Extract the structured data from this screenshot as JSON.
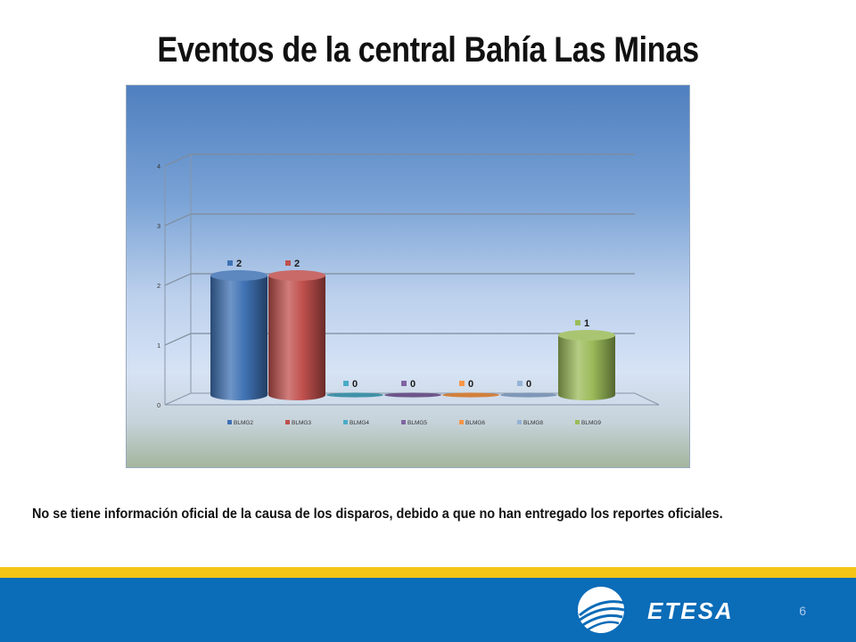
{
  "slide": {
    "title": "Eventos de la central Bahía Las Minas",
    "note": "No se tiene información oficial de la causa de los disparos, debido a que no han entregado los reportes oficiales.",
    "page_number": "6",
    "logo_text": "ETESA"
  },
  "chart_data": {
    "type": "bar",
    "categories": [
      "BLMG2",
      "BLMG3",
      "BLMG4",
      "BLMG5",
      "BLMG6",
      "BLMG8",
      "BLMG9"
    ],
    "values": [
      2,
      2,
      0,
      0,
      0,
      0,
      1
    ],
    "data_labels": [
      "2",
      "2",
      "0",
      "0",
      "0",
      "0",
      "1"
    ],
    "colors": [
      "#3f72b4",
      "#c0504d",
      "#4bacc6",
      "#8064a2",
      "#f79646",
      "#95b3d7",
      "#9bbb59"
    ],
    "y_ticks": [
      "0",
      "1",
      "2",
      "3",
      "4"
    ],
    "ylim": [
      0,
      4
    ],
    "grid": true,
    "legend": "bottom",
    "three_d": true
  }
}
